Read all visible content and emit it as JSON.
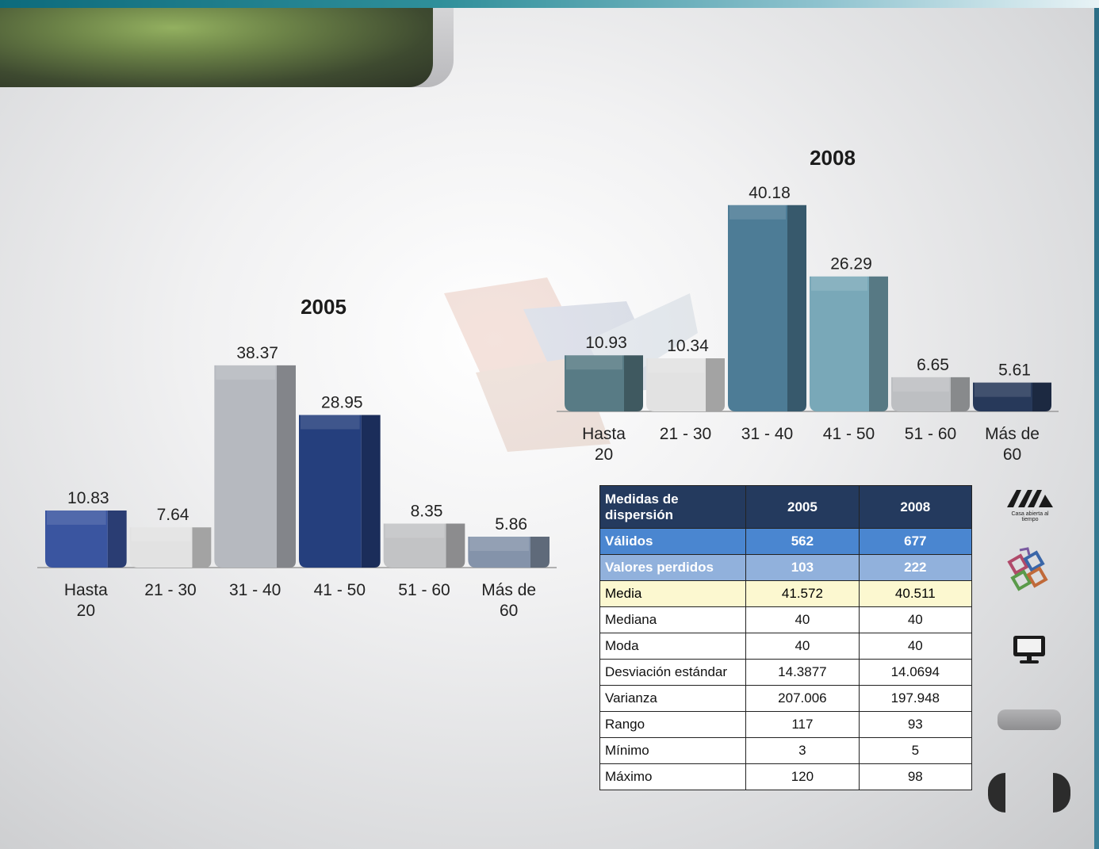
{
  "chart_data": [
    {
      "type": "bar",
      "title": "2005",
      "categories": [
        "Hasta 20",
        "21 - 30",
        "31 - 40",
        "41 - 50",
        "51 - 60",
        "Más de 60"
      ],
      "category_lines": [
        [
          "Hasta",
          "20"
        ],
        [
          "21 - 30"
        ],
        [
          "31 - 40"
        ],
        [
          "41 - 50"
        ],
        [
          "51 - 60"
        ],
        [
          "Más de",
          "60"
        ]
      ],
      "values": [
        10.83,
        7.64,
        38.37,
        28.95,
        8.35,
        5.86
      ],
      "value_labels": [
        "10.83",
        "7.64",
        "38.37",
        "28.95",
        "8.35",
        "5.86"
      ],
      "colors": [
        "#3a55a0",
        "#e2e2e2",
        "#b6b9bf",
        "#253f7d",
        "#c2c3c5",
        "#8493aa"
      ],
      "xlabel": "",
      "ylabel": "",
      "ylim": [
        0,
        40
      ],
      "grid": false,
      "legend": "none"
    },
    {
      "type": "bar",
      "title": "2008",
      "categories": [
        "Hasta 20",
        "21 - 30",
        "31 - 40",
        "41 - 50",
        "51 - 60",
        "Más de 60"
      ],
      "category_lines": [
        [
          "Hasta",
          "20"
        ],
        [
          "21 - 30"
        ],
        [
          "31 - 40"
        ],
        [
          "41 - 50"
        ],
        [
          "51 - 60"
        ],
        [
          "Más de",
          "60"
        ]
      ],
      "values": [
        10.93,
        10.34,
        40.18,
        26.29,
        6.65,
        5.61
      ],
      "value_labels": [
        "10.93",
        "10.34",
        "40.18",
        "26.29",
        "6.65",
        "5.61"
      ],
      "colors": [
        "#587b85",
        "#e2e2e2",
        "#4d7c96",
        "#79a8b8",
        "#bdbfc2",
        "#27395a"
      ],
      "xlabel": "",
      "ylabel": "",
      "ylim": [
        0,
        42
      ],
      "grid": false,
      "legend": "none"
    }
  ],
  "table": {
    "headers": [
      "Medidas de dispersión",
      "2005",
      "2008"
    ],
    "rows": [
      [
        "Válidos",
        "562",
        "677"
      ],
      [
        "Valores perdidos",
        "103",
        "222"
      ],
      [
        "Media",
        "41.572",
        "40.511"
      ],
      [
        "Mediana",
        "40",
        "40"
      ],
      [
        "Moda",
        "40",
        "40"
      ],
      [
        "Desviación estándar",
        "14.3877",
        "14.0694"
      ],
      [
        "Varianza",
        "207.006",
        "197.948"
      ],
      [
        "Rango",
        "117",
        "93"
      ],
      [
        "Mínimo",
        "3",
        "5"
      ],
      [
        "Máximo",
        "120",
        "98"
      ]
    ]
  },
  "sidebar": {
    "logo_caption": "Casa abierta al tiempo",
    "icons": [
      "uam-logo-icon",
      "puzzle-icon",
      "monitor-icon"
    ]
  }
}
